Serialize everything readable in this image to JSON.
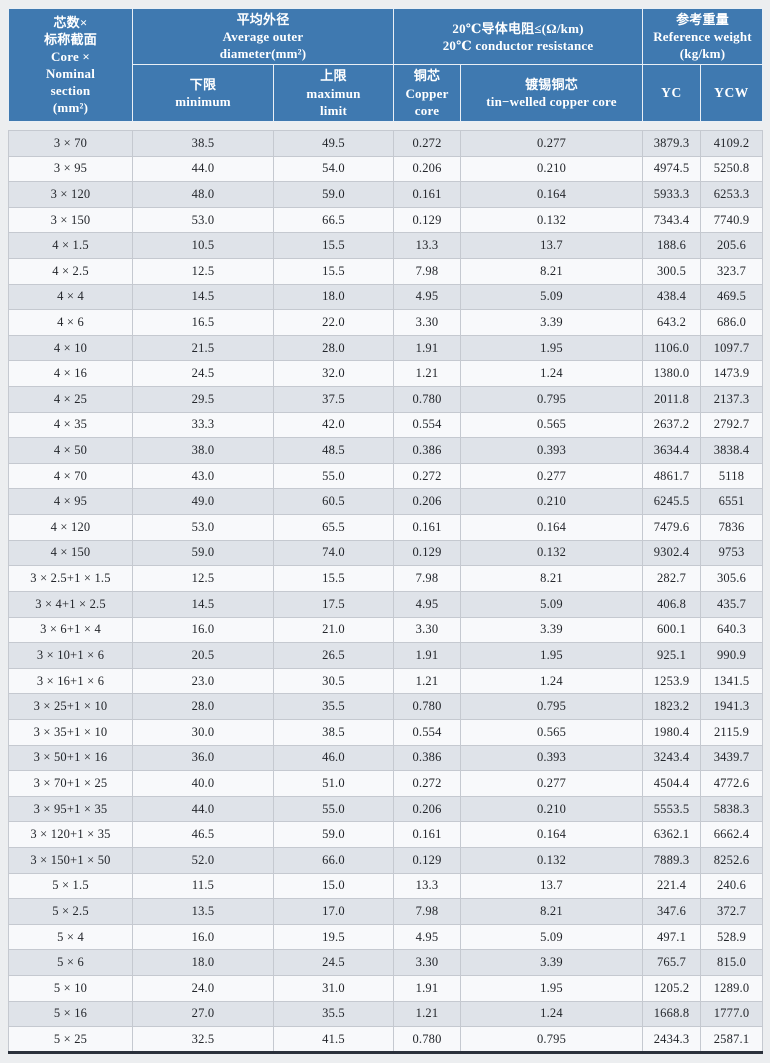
{
  "table": {
    "colors": {
      "page_bg": "#eceef0",
      "header_bg": "#3f79b0",
      "header_text": "#ffffff",
      "header_line": "#e9eff5",
      "row_alt": "#dfe3e9",
      "row_main": "#f8f9fb",
      "grid_line": "#c5c9d0",
      "bottom_bar": "#2b313b",
      "body_text": "#23262b"
    },
    "header": {
      "core_section": "芯数×\n标称截面\nCore ×\nNominal\nsection\n(mm²)",
      "avg_diameter": "平均外径\nAverage outer\ndiameter(mm²)",
      "min": "下限\nminimum",
      "max": "上限\nmaximun\nlimit",
      "resistance": "20℃导体电阻≤(Ω/km)\n20℃ conductor resistance",
      "copper": "铜芯\nCopper\ncore",
      "tinned": "镀锡铜芯\ntin−welled copper core",
      "weight": "参考重量\nReference weight\n(kg/km)",
      "yc": "YC",
      "ycw": "YCW"
    },
    "columns": [
      "core-label",
      "min-diameter",
      "max-diameter",
      "resistance-copper",
      "resistance-tinned",
      "weight-yc",
      "weight-ycw"
    ],
    "rows": [
      [
        "3 × 70",
        "38.5",
        "49.5",
        "0.272",
        "0.277",
        "3879.3",
        "4109.2"
      ],
      [
        "3 × 95",
        "44.0",
        "54.0",
        "0.206",
        "0.210",
        "4974.5",
        "5250.8"
      ],
      [
        "3 × 120",
        "48.0",
        "59.0",
        "0.161",
        "0.164",
        "5933.3",
        "6253.3"
      ],
      [
        "3 × 150",
        "53.0",
        "66.5",
        "0.129",
        "0.132",
        "7343.4",
        "7740.9"
      ],
      [
        "4 × 1.5",
        "10.5",
        "15.5",
        "13.3",
        "13.7",
        "188.6",
        "205.6"
      ],
      [
        "4 × 2.5",
        "12.5",
        "15.5",
        "7.98",
        "8.21",
        "300.5",
        "323.7"
      ],
      [
        "4 × 4",
        "14.5",
        "18.0",
        "4.95",
        "5.09",
        "438.4",
        "469.5"
      ],
      [
        "4 × 6",
        "16.5",
        "22.0",
        "3.30",
        "3.39",
        "643.2",
        "686.0"
      ],
      [
        "4 × 10",
        "21.5",
        "28.0",
        "1.91",
        "1.95",
        "1106.0",
        "1097.7"
      ],
      [
        "4 × 16",
        "24.5",
        "32.0",
        "1.21",
        "1.24",
        "1380.0",
        "1473.9"
      ],
      [
        "4 × 25",
        "29.5",
        "37.5",
        "0.780",
        "0.795",
        "2011.8",
        "2137.3"
      ],
      [
        "4 × 35",
        "33.3",
        "42.0",
        "0.554",
        "0.565",
        "2637.2",
        "2792.7"
      ],
      [
        "4 × 50",
        "38.0",
        "48.5",
        "0.386",
        "0.393",
        "3634.4",
        "3838.4"
      ],
      [
        "4 × 70",
        "43.0",
        "55.0",
        "0.272",
        "0.277",
        "4861.7",
        "5118"
      ],
      [
        "4 × 95",
        "49.0",
        "60.5",
        "0.206",
        "0.210",
        "6245.5",
        "6551"
      ],
      [
        "4 × 120",
        "53.0",
        "65.5",
        "0.161",
        "0.164",
        "7479.6",
        "7836"
      ],
      [
        "4 × 150",
        "59.0",
        "74.0",
        "0.129",
        "0.132",
        "9302.4",
        "9753"
      ],
      [
        "3 × 2.5+1 × 1.5",
        "12.5",
        "15.5",
        "7.98",
        "8.21",
        "282.7",
        "305.6"
      ],
      [
        "3 × 4+1 × 2.5",
        "14.5",
        "17.5",
        "4.95",
        "5.09",
        "406.8",
        "435.7"
      ],
      [
        "3 × 6+1 × 4",
        "16.0",
        "21.0",
        "3.30",
        "3.39",
        "600.1",
        "640.3"
      ],
      [
        "3 × 10+1 × 6",
        "20.5",
        "26.5",
        "1.91",
        "1.95",
        "925.1",
        "990.9"
      ],
      [
        "3 × 16+1 × 6",
        "23.0",
        "30.5",
        "1.21",
        "1.24",
        "1253.9",
        "1341.5"
      ],
      [
        "3 × 25+1 × 10",
        "28.0",
        "35.5",
        "0.780",
        "0.795",
        "1823.2",
        "1941.3"
      ],
      [
        "3 × 35+1 × 10",
        "30.0",
        "38.5",
        "0.554",
        "0.565",
        "1980.4",
        "2115.9"
      ],
      [
        "3 × 50+1 × 16",
        "36.0",
        "46.0",
        "0.386",
        "0.393",
        "3243.4",
        "3439.7"
      ],
      [
        "3 × 70+1 × 25",
        "40.0",
        "51.0",
        "0.272",
        "0.277",
        "4504.4",
        "4772.6"
      ],
      [
        "3 × 95+1 × 35",
        "44.0",
        "55.0",
        "0.206",
        "0.210",
        "5553.5",
        "5838.3"
      ],
      [
        "3 × 120+1 × 35",
        "46.5",
        "59.0",
        "0.161",
        "0.164",
        "6362.1",
        "6662.4"
      ],
      [
        "3 × 150+1 × 50",
        "52.0",
        "66.0",
        "0.129",
        "0.132",
        "7889.3",
        "8252.6"
      ],
      [
        "5 × 1.5",
        "11.5",
        "15.0",
        "13.3",
        "13.7",
        "221.4",
        "240.6"
      ],
      [
        "5 × 2.5",
        "13.5",
        "17.0",
        "7.98",
        "8.21",
        "347.6",
        "372.7"
      ],
      [
        "5 × 4",
        "16.0",
        "19.5",
        "4.95",
        "5.09",
        "497.1",
        "528.9"
      ],
      [
        "5 × 6",
        "18.0",
        "24.5",
        "3.30",
        "3.39",
        "765.7",
        "815.0"
      ],
      [
        "5 × 10",
        "24.0",
        "31.0",
        "1.91",
        "1.95",
        "1205.2",
        "1289.0"
      ],
      [
        "5 × 16",
        "27.0",
        "35.5",
        "1.21",
        "1.24",
        "1668.8",
        "1777.0"
      ],
      [
        "5 × 25",
        "32.5",
        "41.5",
        "0.780",
        "0.795",
        "2434.3",
        "2587.1"
      ]
    ]
  }
}
